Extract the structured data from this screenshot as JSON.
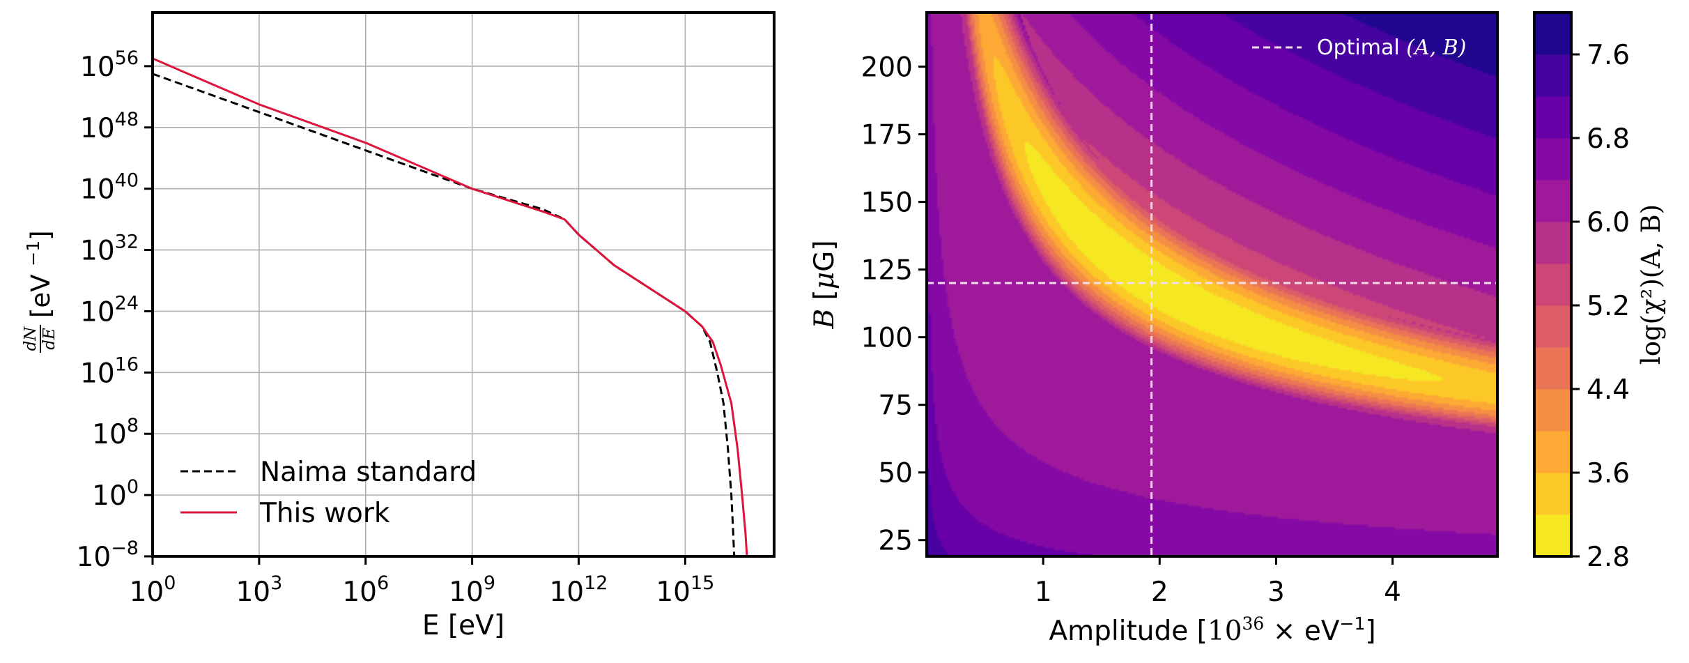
{
  "chart_data": [
    {
      "type": "line",
      "scale": {
        "x": "log10",
        "y": "log10"
      },
      "xlabel": "E [eV]",
      "ylabel": {
        "fraction_num": "dN",
        "fraction_den": "dE",
        "unit": "[eV ",
        "exp": "−1",
        "close": "]"
      },
      "xlim": [
        1,
        3.2e+17
      ],
      "ylim": [
        1e-08,
        1e+63
      ],
      "grid": true,
      "x_ticks": [
        {
          "base": "10",
          "exp": "0",
          "value": 1
        },
        {
          "base": "10",
          "exp": "3",
          "value": 1000.0
        },
        {
          "base": "10",
          "exp": "6",
          "value": 1000000.0
        },
        {
          "base": "10",
          "exp": "9",
          "value": 1000000000.0
        },
        {
          "base": "10",
          "exp": "12",
          "value": 1000000000000.0
        },
        {
          "base": "10",
          "exp": "15",
          "value": 1000000000000000.0
        }
      ],
      "y_ticks": [
        {
          "base": "10",
          "exp": "−8",
          "value": 1e-08
        },
        {
          "base": "10",
          "exp": "0",
          "value": 1
        },
        {
          "base": "10",
          "exp": "8",
          "value": 100000000.0
        },
        {
          "base": "10",
          "exp": "16",
          "value": 1e+16
        },
        {
          "base": "10",
          "exp": "24",
          "value": 1e+24
        },
        {
          "base": "10",
          "exp": "32",
          "value": 1e+32
        },
        {
          "base": "10",
          "exp": "40",
          "value": 1e+40
        },
        {
          "base": "10",
          "exp": "48",
          "value": 1e+48
        },
        {
          "base": "10",
          "exp": "56",
          "value": 1e+56
        }
      ],
      "legend": {
        "placement": "lower-left"
      },
      "series": [
        {
          "name": "Naima standard",
          "color": "#000000",
          "style": "dashed",
          "points": [
            [
              1,
              1e+55
            ],
            [
              1000.0,
              1e+50
            ],
            [
              1000000.0,
              1e+45
            ],
            [
              1000000000.0,
              1e+40
            ],
            [
              100000000000.0,
              2e+37
            ],
            [
              400000000000.0,
              1e+36
            ],
            [
              1000000000000.0,
              1e+34
            ],
            [
              10000000000000.0,
              1e+30
            ],
            [
              100000000000000.0,
              1e+27
            ],
            [
              1000000000000000.0,
              1e+24
            ],
            [
              3000000000000000.0,
              1e+22
            ],
            [
              5000000000000000.0,
              1e+20
            ],
            [
              8000000000000000.0,
              1e+16
            ],
            [
              1.2e+16,
              1000000000000.0
            ],
            [
              1.6e+16,
              1000000.0
            ],
            [
              2e+16,
              1.0
            ],
            [
              2.2e+16,
              0.0001
            ],
            [
              2.4e+16,
              1e-08
            ]
          ]
        },
        {
          "name": "This work",
          "color": "#dc143c",
          "style": "solid",
          "points": [
            [
              1,
              1e+57
            ],
            [
              1000.0,
              1e+51
            ],
            [
              1000000.0,
              1e+46
            ],
            [
              1000000000.0,
              1e+40
            ],
            [
              100000000000.0,
              1e+37
            ],
            [
              400000000000.0,
              1e+36
            ],
            [
              1000000000000.0,
              1e+34
            ],
            [
              10000000000000.0,
              1e+30
            ],
            [
              100000000000000.0,
              1e+27
            ],
            [
              1000000000000000.0,
              1e+24
            ],
            [
              3000000000000000.0,
              1e+22
            ],
            [
              6000000000000000.0,
              1e+20
            ],
            [
              1e+16,
              1e+17
            ],
            [
              2e+16,
              1000000000000.0
            ],
            [
              3e+16,
              1000000.0
            ],
            [
              4e+16,
              1.0
            ],
            [
              5e+16,
              1e-05
            ],
            [
              5.5e+16,
              1e-08
            ]
          ]
        }
      ]
    },
    {
      "type": "heatmap",
      "subtype": "filled-contour",
      "xlabel": {
        "text": "Amplitude [",
        "serif_base": "10",
        "serif_exp": "36",
        "times": " × eV",
        "exp": "−1",
        "close": "]"
      },
      "ylabel": {
        "serif_var": "B",
        "text_a": " [",
        "serif_mu": "μ",
        "text_b": "G]"
      },
      "xlim": [
        0.0,
        4.9
      ],
      "ylim": [
        19,
        220
      ],
      "x_ticks": [
        "1",
        "2",
        "3",
        "4"
      ],
      "y_ticks": [
        "25",
        "50",
        "75",
        "100",
        "125",
        "150",
        "175",
        "200"
      ],
      "colorbar": {
        "label": "log(χ²)(A, B)",
        "range": [
          2.8,
          8.0
        ],
        "levels": [
          2.8,
          3.2,
          3.6,
          4.0,
          4.4,
          4.8,
          5.2,
          5.6,
          6.0,
          6.4,
          6.8,
          7.2,
          7.6,
          8.0
        ],
        "tick_labels": [
          "2.8",
          "3.6",
          "4.4",
          "5.2",
          "6.0",
          "6.8",
          "7.6"
        ],
        "colormap": "plasma"
      },
      "optimum": {
        "A": 1.93,
        "B": 120
      },
      "legend": {
        "placement": "top-right",
        "label": "Optimal (A, B)",
        "label_prefix": "Optimal ",
        "label_math": "(A, B)",
        "style": "dashed",
        "color": "#f4dce8"
      }
    }
  ]
}
